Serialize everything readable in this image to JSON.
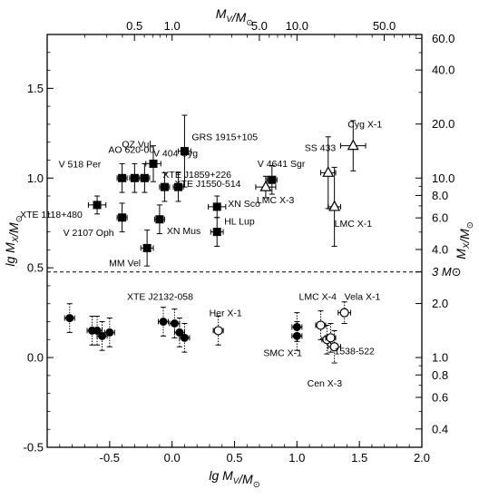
{
  "chart_data": {
    "type": "scatter",
    "xlabel": "lg M_V/M_⊙",
    "ylabel": "lg M_X/M_⊙",
    "top_xlabel": "M_V/M_⊙",
    "right_ylabel": "M_X/M_⊙",
    "xlim": [
      -1.0,
      2.0
    ],
    "ylim": [
      -0.5,
      1.8
    ],
    "x_ticks": [
      "-0.5",
      "0.0",
      "0.5",
      "1.0",
      "1.5",
      "2.0"
    ],
    "y_ticks": [
      "-0.5",
      "0.0",
      "0.5",
      "1.0",
      "1.5"
    ],
    "top_ticks": [
      "0.5",
      "1.0",
      "5.0",
      "10.0",
      "50.0"
    ],
    "right_ticks": [
      "60.0",
      "40.0",
      "20.0",
      "10.0",
      "8.0",
      "6.0",
      "4.0",
      "3 M⊙",
      "2.0",
      "1.0",
      "0.8",
      "0.6",
      "0.4"
    ],
    "reference_line_y": 0.477,
    "series": [
      {
        "marker": "filled-square",
        "points": [
          {
            "x": -0.6,
            "y": 0.85,
            "label": "XTE 1118+480"
          },
          {
            "x": -0.4,
            "y": 1.0,
            "label": "V 518 Per"
          },
          {
            "x": -0.4,
            "y": 0.78,
            "label": "V 2107 Oph"
          },
          {
            "x": -0.3,
            "y": 1.0,
            "label": "QZ Vul"
          },
          {
            "x": -0.22,
            "y": 1.0,
            "label": "AO 620-00"
          },
          {
            "x": -0.2,
            "y": 0.61,
            "label": "MM Vel"
          },
          {
            "x": -0.15,
            "y": 1.08,
            "label": "V 404 Cyg"
          },
          {
            "x": -0.1,
            "y": 0.77,
            "label": "XN Mus"
          },
          {
            "x": -0.06,
            "y": 0.95,
            "label": "XTE J1859+226"
          },
          {
            "x": 0.05,
            "y": 0.95,
            "label": "XTE J1550-514"
          },
          {
            "x": 0.1,
            "y": 1.15,
            "label": "GRS 1915+105"
          },
          {
            "x": 0.36,
            "y": 0.84,
            "label": "XN Sco"
          },
          {
            "x": 0.36,
            "y": 0.7,
            "label": "HL Lup"
          },
          {
            "x": 0.8,
            "y": 0.99,
            "label": "V 4641 Sgr"
          }
        ]
      },
      {
        "marker": "open-triangle",
        "points": [
          {
            "x": 0.75,
            "y": 0.95,
            "label": "LMC X-3"
          },
          {
            "x": 1.25,
            "y": 1.03,
            "label": "SS 433"
          },
          {
            "x": 1.3,
            "y": 0.84,
            "label": "LMC X-1"
          },
          {
            "x": 1.45,
            "y": 1.18,
            "label": "Cyg X-1"
          }
        ]
      },
      {
        "marker": "filled-circle",
        "points": [
          {
            "x": -0.82,
            "y": 0.22,
            "label": ""
          },
          {
            "x": -0.64,
            "y": 0.15,
            "label": ""
          },
          {
            "x": -0.6,
            "y": 0.15,
            "label": ""
          },
          {
            "x": -0.56,
            "y": 0.12,
            "label": ""
          },
          {
            "x": -0.5,
            "y": 0.14,
            "label": ""
          },
          {
            "x": -0.07,
            "y": 0.2,
            "label": "XTE J2132-058"
          },
          {
            "x": 0.02,
            "y": 0.19,
            "label": ""
          },
          {
            "x": 0.06,
            "y": 0.14,
            "label": ""
          },
          {
            "x": 0.1,
            "y": 0.11,
            "label": ""
          },
          {
            "x": 1.0,
            "y": 0.17,
            "label": ""
          },
          {
            "x": 1.0,
            "y": 0.12,
            "label": ""
          }
        ]
      },
      {
        "marker": "open-circle",
        "points": [
          {
            "x": 0.37,
            "y": 0.15,
            "label": "Her X-1"
          },
          {
            "x": 1.19,
            "y": 0.18,
            "label": "LMC X-4"
          },
          {
            "x": 1.24,
            "y": 0.1,
            "label": "SMC X-1"
          },
          {
            "x": 1.27,
            "y": 0.11,
            "label": "1538-522"
          },
          {
            "x": 1.3,
            "y": 0.06,
            "label": "Cen X-3"
          },
          {
            "x": 1.38,
            "y": 0.25,
            "label": "Vela X-1"
          }
        ]
      }
    ]
  }
}
